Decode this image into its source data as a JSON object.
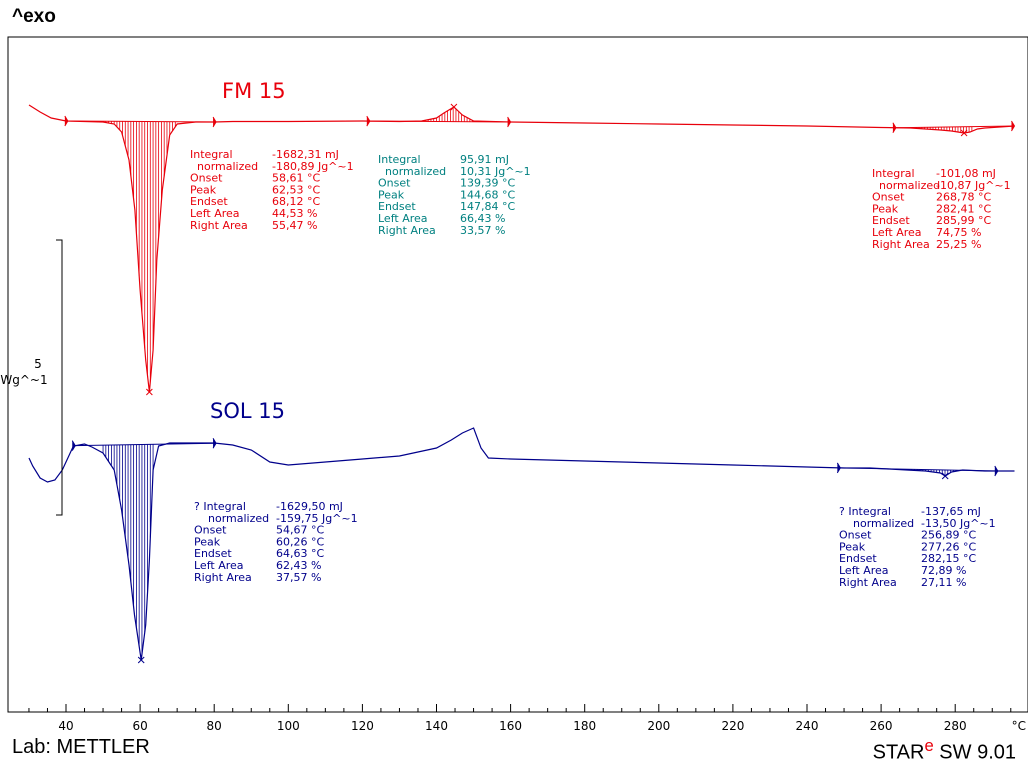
{
  "header": {
    "exo_label": "^exo"
  },
  "footer": {
    "lab_text": "Lab: METTLER",
    "software_prefix": "STAR",
    "software_superscript": "e",
    "software_suffix": " SW 9.01"
  },
  "chart_data": {
    "type": "line",
    "xlim": [
      30,
      296
    ],
    "x_ticks": [
      40,
      60,
      80,
      100,
      120,
      140,
      160,
      180,
      200,
      220,
      240,
      260,
      280
    ],
    "x_unit": "°C",
    "scale_bar": {
      "value": "5",
      "unit": "Wg^-1"
    },
    "series": [
      {
        "name": "FM 15",
        "color": "#e8000b",
        "points": [
          [
            30,
            105
          ],
          [
            33,
            112
          ],
          [
            36,
            118
          ],
          [
            40,
            121
          ],
          [
            45,
            121.5
          ],
          [
            50,
            122
          ],
          [
            53,
            124
          ],
          [
            55,
            132
          ],
          [
            57,
            160
          ],
          [
            58.6,
            210
          ],
          [
            60,
            290
          ],
          [
            61.5,
            360
          ],
          [
            62.5,
            392
          ],
          [
            63.5,
            350
          ],
          [
            64.5,
            260
          ],
          [
            66,
            190
          ],
          [
            68,
            135
          ],
          [
            70,
            124
          ],
          [
            75,
            122
          ],
          [
            80,
            122
          ],
          [
            85,
            121.5
          ],
          [
            100,
            121.5
          ],
          [
            120,
            121
          ],
          [
            130,
            121.5
          ],
          [
            136,
            121
          ],
          [
            140,
            118
          ],
          [
            142,
            113
          ],
          [
            144.7,
            107
          ],
          [
            147,
            115
          ],
          [
            150,
            121
          ],
          [
            160,
            122
          ],
          [
            180,
            123
          ],
          [
            200,
            124
          ],
          [
            220,
            125
          ],
          [
            240,
            126
          ],
          [
            260,
            127.5
          ],
          [
            268,
            128
          ],
          [
            272,
            129
          ],
          [
            276,
            130
          ],
          [
            279,
            131
          ],
          [
            282.4,
            133
          ],
          [
            284,
            132
          ],
          [
            286,
            129
          ],
          [
            288,
            128
          ],
          [
            292,
            127
          ],
          [
            296,
            126
          ]
        ],
        "baseline_ranges": [
          [
            40.5,
            63.5,
            80.5
          ],
          [
            122,
            131,
            160
          ],
          [
            264,
            282,
            296
          ]
        ],
        "shaded_ranges": [
          [
            50,
            70
          ],
          [
            137,
            150
          ],
          [
            268,
            285
          ]
        ],
        "peak_markers": [
          [
            62.5,
            392
          ],
          [
            144.7,
            107
          ],
          [
            282.4,
            133
          ]
        ]
      },
      {
        "name": "SOL 15",
        "color": "#00008b",
        "points": [
          [
            30,
            458
          ],
          [
            31,
            466
          ],
          [
            33,
            478
          ],
          [
            35,
            482
          ],
          [
            37,
            480
          ],
          [
            39,
            470
          ],
          [
            40,
            462
          ],
          [
            42,
            446
          ],
          [
            45,
            444
          ],
          [
            47,
            447
          ],
          [
            50,
            453
          ],
          [
            53,
            470
          ],
          [
            55,
            510
          ],
          [
            57,
            565
          ],
          [
            58.5,
            615
          ],
          [
            60.3,
            660
          ],
          [
            61.5,
            625
          ],
          [
            62.5,
            560
          ],
          [
            63.5,
            470
          ],
          [
            65,
            446
          ],
          [
            68,
            443
          ],
          [
            75,
            443
          ],
          [
            80,
            443
          ],
          [
            85,
            445
          ],
          [
            90,
            450
          ],
          [
            95,
            462
          ],
          [
            100,
            465
          ],
          [
            110,
            462
          ],
          [
            120,
            459
          ],
          [
            130,
            456
          ],
          [
            140,
            448
          ],
          [
            144,
            440
          ],
          [
            147,
            433
          ],
          [
            150,
            428
          ],
          [
            152,
            448
          ],
          [
            154,
            458
          ],
          [
            160,
            459
          ],
          [
            180,
            461
          ],
          [
            200,
            463
          ],
          [
            220,
            465
          ],
          [
            240,
            467
          ],
          [
            250,
            468
          ],
          [
            257,
            468
          ],
          [
            262,
            469
          ],
          [
            267,
            470
          ],
          [
            272,
            471
          ],
          [
            276,
            473
          ],
          [
            277.3,
            476
          ],
          [
            279,
            472
          ],
          [
            282,
            470
          ],
          [
            288,
            471
          ],
          [
            296,
            471
          ]
        ],
        "baseline_ranges": [
          [
            42.5,
            61,
            80.5
          ],
          [
            249,
            275,
            291.5
          ]
        ],
        "shaded_ranges": [
          [
            50,
            64
          ],
          [
            257,
            282
          ]
        ],
        "peak_markers": [
          [
            60.3,
            660
          ],
          [
            277.3,
            476
          ]
        ]
      }
    ],
    "annotations": [
      {
        "color": "#e8000b",
        "labels": [
          "Integral",
          " normalized",
          "Onset",
          "Peak",
          "Endset",
          "Left Area",
          "Right Area"
        ],
        "values": [
          "-1682,31 mJ",
          "-180,89 Jg^-1",
          "58,61 °C",
          "62,53 °C",
          "68,12 °C",
          "44,53 %",
          "55,47 %"
        ]
      },
      {
        "color": "#008080",
        "labels": [
          "Integral",
          " normalized",
          "Onset",
          "Peak",
          "Endset",
          "Left Area",
          "Right Area"
        ],
        "values": [
          "95,91 mJ",
          "10,31 Jg^-1",
          "139,39 °C",
          "144,68 °C",
          "147,84 °C",
          "66,43 %",
          "33,57 %"
        ]
      },
      {
        "color": "#e8000b",
        "labels": [
          "Integral",
          " normalized",
          "Onset",
          "Peak",
          "Endset",
          "Left Area",
          "Right Area"
        ],
        "values": [
          "-101,08 mJ",
          "-10,87 Jg^-1",
          "268,78 °C",
          "282,41 °C",
          "285,99 °C",
          "74,75 %",
          "25,25 %"
        ]
      },
      {
        "color": "#00008b",
        "labels": [
          "? Integral",
          "  normalized",
          "Onset",
          "Peak",
          "Endset",
          "Left Area",
          "Right Area"
        ],
        "values": [
          "-1629,50 mJ",
          "-159,75 Jg^-1",
          "54,67 °C",
          "60,26 °C",
          "64,63 °C",
          "62,43 %",
          "37,57 %"
        ]
      },
      {
        "color": "#00008b",
        "labels": [
          "? Integral",
          "  normalized",
          "Onset",
          "Peak",
          "Endset",
          "Left Area",
          "Right Area"
        ],
        "values": [
          "-137,65 mJ",
          "-13,50 Jg^-1",
          "256,89 °C",
          "277,26 °C",
          "282,15 °C",
          "72,89 %",
          "27,11 %"
        ]
      }
    ]
  }
}
